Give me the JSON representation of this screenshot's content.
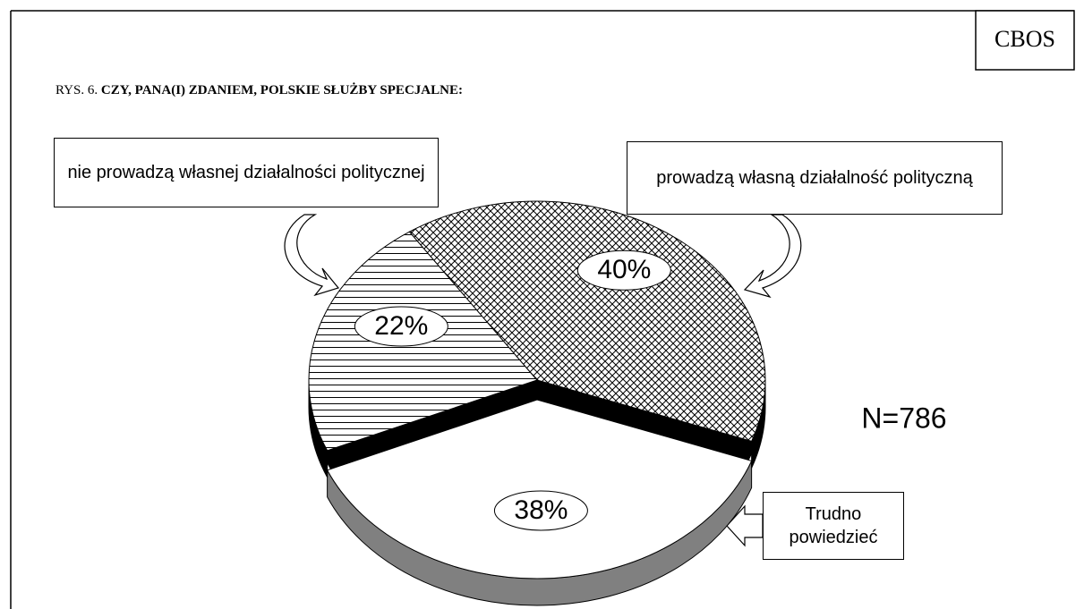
{
  "chart_data": {
    "type": "pie3d",
    "source": "CBOS",
    "figure_label": "RYS. 6.",
    "title": "CZY, PANA(I) ZDANIEM, POLSKIE SŁUŻBY SPECJALNE:",
    "annotation": "N=786",
    "categories": [
      "nie prowadzą własnej działalności politycznej",
      "prowadzą własną działalność polityczną",
      "Trudno powiedzieć"
    ],
    "values": [
      22,
      40,
      38
    ],
    "value_labels": [
      "22%",
      "40%",
      "38%"
    ],
    "patterns": [
      "horizontal",
      "crosshatch",
      "none"
    ],
    "side_colors": [
      "#000000",
      "#000000",
      "#808080"
    ]
  }
}
